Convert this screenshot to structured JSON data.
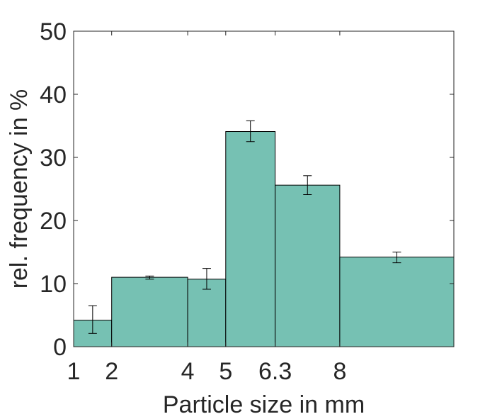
{
  "chart_data": {
    "type": "bar",
    "title": "",
    "xlabel": "Particle size in mm",
    "ylabel": "rel. frequency in %",
    "xlim": [
      1,
      11
    ],
    "ylim": [
      0,
      50
    ],
    "xticks": [
      1,
      2,
      4,
      5,
      6.3,
      8
    ],
    "xtick_labels": [
      "1",
      "2",
      "4",
      "5",
      "6.3",
      "8"
    ],
    "yticks": [
      0,
      10,
      20,
      30,
      40,
      50
    ],
    "ytick_labels": [
      "0",
      "10",
      "20",
      "30",
      "40",
      "50"
    ],
    "grid": false,
    "bar_color": "#76c1b3",
    "bins": [
      {
        "from": 1,
        "to": 2,
        "value": 4.2,
        "err_low": 2.1,
        "err_high": 6.5
      },
      {
        "from": 2,
        "to": 4,
        "value": 11.0,
        "err_low": 10.7,
        "err_high": 11.2
      },
      {
        "from": 4,
        "to": 5,
        "value": 10.7,
        "err_low": 9.1,
        "err_high": 12.4
      },
      {
        "from": 5,
        "to": 6.3,
        "value": 34.1,
        "err_low": 32.5,
        "err_high": 35.8
      },
      {
        "from": 6.3,
        "to": 8,
        "value": 25.6,
        "err_low": 24.1,
        "err_high": 27.1
      },
      {
        "from": 8,
        "to": 11,
        "value": 14.2,
        "err_low": 13.3,
        "err_high": 15.0
      }
    ]
  }
}
